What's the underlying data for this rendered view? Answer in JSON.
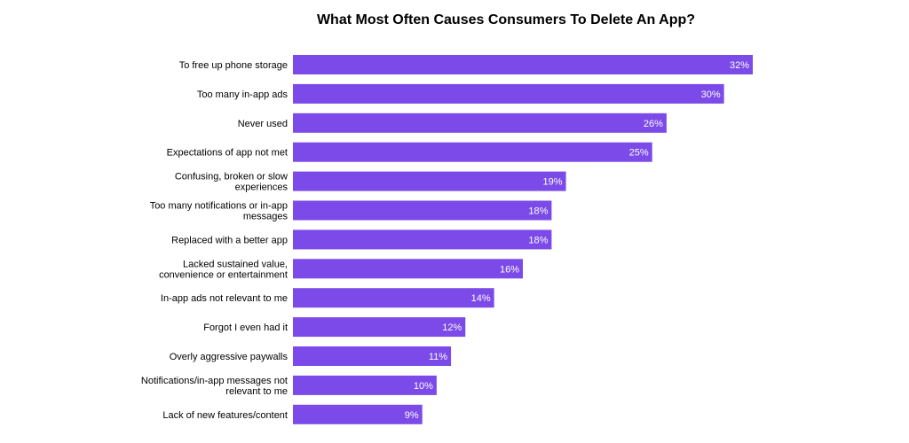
{
  "chart_data": {
    "type": "bar",
    "orientation": "horizontal",
    "title": "What Most Often Causes Consumers To Delete An App?",
    "xlabel": "",
    "ylabel": "",
    "xlim": [
      0,
      32
    ],
    "grid": false,
    "legend": "none",
    "bar_color": "#7b4ae8",
    "categories": [
      "To free up phone storage",
      "Too many in-app ads",
      "Never used",
      "Expectations of app not met",
      "Confusing, broken or slow experiences",
      "Too many notifications or in-app messages",
      "Replaced with a better app",
      "Lacked sustained value, convenience or entertainment",
      "In-app ads not relevant to me",
      "Forgot I even had it",
      "Overly aggressive paywalls",
      "Notifications/in-app messages not relevant to me",
      "Lack of new features/content"
    ],
    "category_lines": [
      [
        "To free up phone storage"
      ],
      [
        "Too many in-app ads"
      ],
      [
        "Never used"
      ],
      [
        "Expectations of app not met"
      ],
      [
        "Confusing, broken or slow",
        "experiences"
      ],
      [
        "Too many notifications or in-app",
        "messages"
      ],
      [
        "Replaced with a better app"
      ],
      [
        "Lacked sustained value,",
        "convenience or entertainment"
      ],
      [
        "In-app ads not relevant to me"
      ],
      [
        "Forgot I even had it"
      ],
      [
        "Overly aggressive paywalls"
      ],
      [
        "Notifications/in-app messages not",
        "relevant to me"
      ],
      [
        "Lack of new features/content"
      ]
    ],
    "values": [
      32,
      30,
      26,
      25,
      19,
      18,
      18,
      16,
      14,
      12,
      11,
      10,
      9
    ],
    "value_labels": [
      "32%",
      "30%",
      "26%",
      "25%",
      "19%",
      "18%",
      "18%",
      "16%",
      "14%",
      "12%",
      "11%",
      "10%",
      "9%"
    ]
  }
}
